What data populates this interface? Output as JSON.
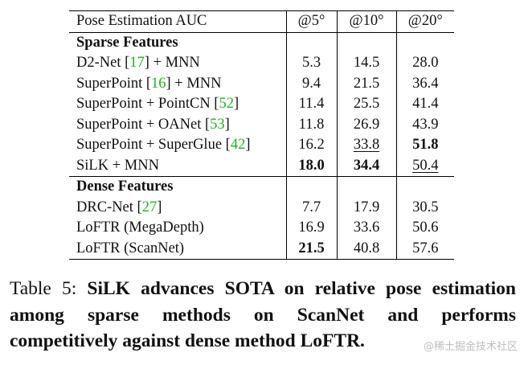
{
  "table": {
    "header": [
      "Pose Estimation AUC",
      "@5°",
      "@10°",
      "@20°"
    ],
    "sections": [
      {
        "title": "Sparse Features",
        "rows": [
          {
            "method": "D2-Net [17] + MNN",
            "pre": "D2-Net [",
            "cite": "17",
            "post": "] + MNN",
            "v5": "5.3",
            "v10": "14.5",
            "v20": "28.0",
            "style": [
              "",
              "",
              ""
            ]
          },
          {
            "method": "SuperPoint [16] + MNN",
            "pre": "SuperPoint [",
            "cite": "16",
            "post": "] + MNN",
            "v5": "9.4",
            "v10": "21.5",
            "v20": "36.4",
            "style": [
              "",
              "",
              ""
            ]
          },
          {
            "method": "SuperPoint + PointCN [52]",
            "pre": "SuperPoint + PointCN [",
            "cite": "52",
            "post": "]",
            "v5": "11.4",
            "v10": "25.5",
            "v20": "41.4",
            "style": [
              "",
              "",
              ""
            ]
          },
          {
            "method": "SuperPoint + OANet [53]",
            "pre": "SuperPoint + OANet [",
            "cite": "53",
            "post": "]",
            "v5": "11.8",
            "v10": "26.9",
            "v20": "43.9",
            "style": [
              "",
              "",
              ""
            ]
          },
          {
            "method": "SuperPoint + SuperGlue [42]",
            "pre": "SuperPoint + SuperGlue [",
            "cite": "42",
            "post": "]",
            "v5": "16.2",
            "v10": "33.8",
            "v20": "51.8",
            "style": [
              "",
              "u",
              "b"
            ]
          },
          {
            "method": "SiLK + MNN",
            "pre": "SiLK + MNN",
            "cite": "",
            "post": "",
            "v5": "18.0",
            "v10": "34.4",
            "v20": "50.4",
            "style": [
              "b",
              "b",
              "u"
            ]
          }
        ]
      },
      {
        "title": "Dense Features",
        "rows": [
          {
            "method": "DRC-Net [27]",
            "pre": "DRC-Net [",
            "cite": "27",
            "post": "]",
            "v5": "7.7",
            "v10": "17.9",
            "v20": "30.5",
            "style": [
              "",
              "",
              ""
            ]
          },
          {
            "method": "LoFTR (MegaDepth)",
            "pre": "LoFTR (MegaDepth)",
            "cite": "",
            "post": "",
            "v5": "16.9",
            "v10": "33.6",
            "v20": "50.6",
            "style": [
              "",
              "",
              ""
            ]
          },
          {
            "method": "LoFTR (ScanNet)",
            "pre": "LoFTR (ScanNet)",
            "cite": "",
            "post": "",
            "v5": "21.5",
            "v10": "40.8",
            "v20": "57.6",
            "style": [
              "b",
              "",
              ""
            ]
          }
        ]
      }
    ]
  },
  "caption": {
    "label": "Table 5:",
    "text": "SiLK advances SOTA on relative pose estimation among sparse methods on ScanNet and performs competitively against dense method LoFTR."
  },
  "watermark": "@稀土掘金技术社区",
  "colors": {
    "citation": "#22b022",
    "text": "#111111"
  }
}
